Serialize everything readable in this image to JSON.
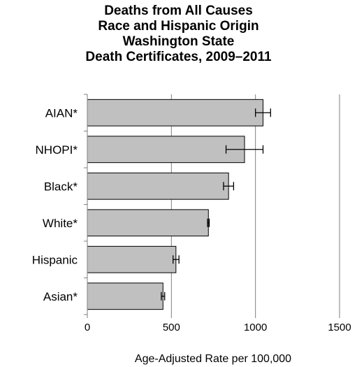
{
  "chart_data": {
    "type": "bar",
    "orientation": "horizontal",
    "title_lines": [
      "Deaths from All Causes",
      "Race and Hispanic Origin",
      "Washington State",
      "Death Certificates, 2009–2011"
    ],
    "categories": [
      "AIAN*",
      "NHOPI*",
      "Black*",
      "White*",
      "Hispanic",
      "Asian*"
    ],
    "values": [
      1045,
      935,
      840,
      720,
      527,
      450
    ],
    "error_low": [
      1000,
      825,
      810,
      715,
      510,
      440
    ],
    "error_high": [
      1090,
      1045,
      870,
      725,
      545,
      460
    ],
    "xlabel": "Age-Adjusted Rate per 100,000",
    "ylabel": "",
    "xlim": [
      0,
      1500
    ],
    "xticks": [
      0,
      500,
      1000,
      1500
    ],
    "grid": "vertical",
    "bar_color": "#c0c0c0",
    "bar_edge_color": "#000000"
  }
}
